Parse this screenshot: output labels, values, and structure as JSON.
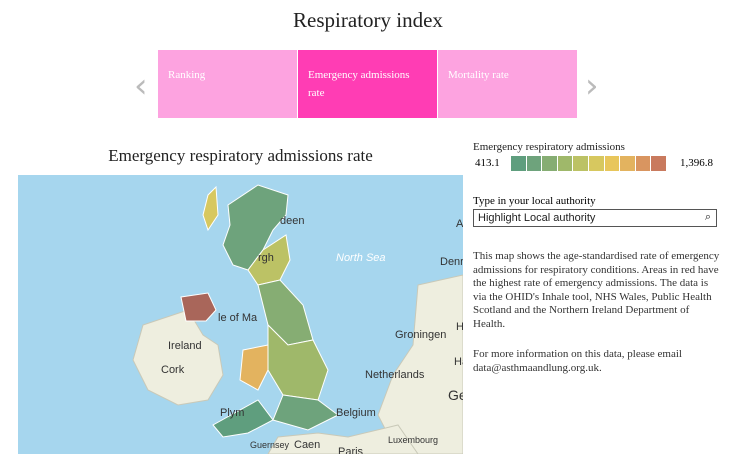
{
  "header": {
    "title": "Respiratory index"
  },
  "tabs": [
    "Ranking",
    "Emergency admissions rate",
    "Mortality rate"
  ],
  "map": {
    "title": "Emergency respiratory admissions rate",
    "labels": [
      "deen",
      "rgh",
      "North Sea",
      "Denr",
      "le of Ma",
      "Ireland",
      "Cork",
      "Groningen",
      "Netherlands",
      "Belgium",
      "Luxembourg",
      "Guernsey",
      "Caen",
      "Paris",
      "Plym",
      "Ge",
      "Ha",
      "H",
      "A"
    ]
  },
  "legend": {
    "title": "Emergency respiratory admissions",
    "min": "413.1",
    "max": "1,396.8",
    "colors": [
      "#5f9e7e",
      "#6ea37c",
      "#86ad73",
      "#9fb86a",
      "#bcc265",
      "#d7c85f",
      "#e8c65b",
      "#e3b35f",
      "#d99560",
      "#c97a5e"
    ]
  },
  "search": {
    "label": "Type in your local authority",
    "placeholder": "Highlight Local authority"
  },
  "description": [
    "This map shows the age-standardised rate of emergency admissions for respiratory conditions. Areas in red have the highest rate of emergency admissions. The data is via the OHID's Inhale tool, NHS Wales, Public Health Scotland and the Northern Ireland Department of Health.",
    "For more information on this data, please email data@asthmaandlung.org.uk."
  ]
}
